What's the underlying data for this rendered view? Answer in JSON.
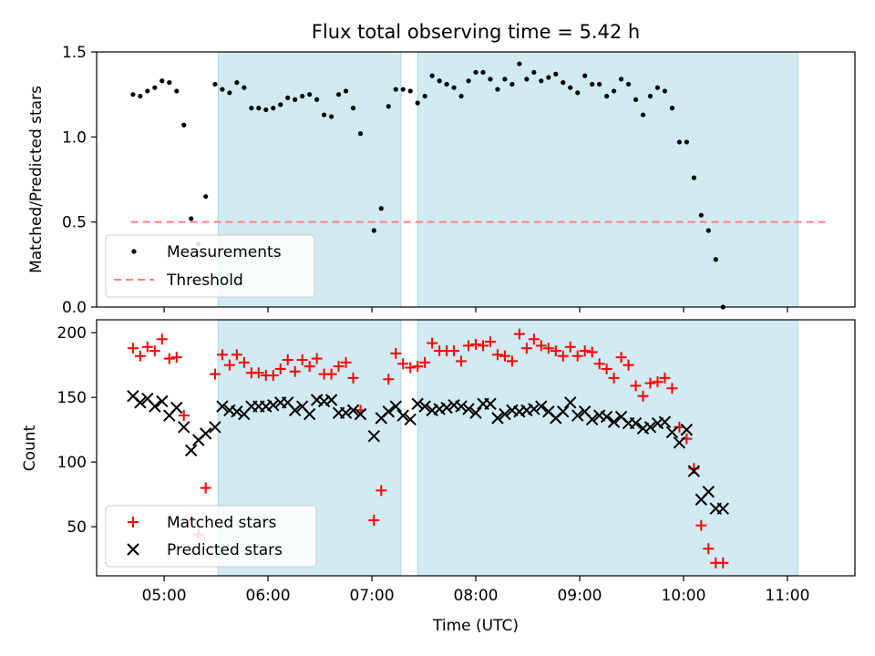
{
  "figure_title": "Flux total observing time = 5.42 h",
  "chart_data": [
    {
      "type": "scatter",
      "title": "Flux total observing time = 5.42 h",
      "xlabel": "",
      "ylabel": "Matched/Predicted stars",
      "xlim_hours": [
        4.35,
        11.65
      ],
      "ylim": [
        0,
        1.5
      ],
      "yticks": [
        "0.0",
        "0.5",
        "1.0",
        "1.5"
      ],
      "xticks": [
        "05:00",
        "06:00",
        "07:00",
        "08:00",
        "09:00",
        "10:00",
        "11:00"
      ],
      "shaded_intervals_hours": [
        [
          5.52,
          7.28
        ],
        [
          7.44,
          11.1
        ]
      ],
      "shade_color": "#add8e6",
      "grid": false,
      "legend": {
        "position": "lower-left"
      },
      "series": [
        {
          "name": "Measurements",
          "kind": "points",
          "color": "#000000",
          "points": [
            [
              4.7,
              1.25
            ],
            [
              4.77,
              1.24
            ],
            [
              4.84,
              1.27
            ],
            [
              4.91,
              1.29
            ],
            [
              4.98,
              1.33
            ],
            [
              5.05,
              1.32
            ],
            [
              5.12,
              1.27
            ],
            [
              5.19,
              1.07
            ],
            [
              5.26,
              0.52
            ],
            [
              5.33,
              0.37
            ],
            [
              5.4,
              0.65
            ],
            [
              5.49,
              1.31
            ],
            [
              5.56,
              1.28
            ],
            [
              5.63,
              1.26
            ],
            [
              5.7,
              1.32
            ],
            [
              5.77,
              1.29
            ],
            [
              5.84,
              1.17
            ],
            [
              5.91,
              1.17
            ],
            [
              5.98,
              1.16
            ],
            [
              6.05,
              1.17
            ],
            [
              6.12,
              1.19
            ],
            [
              6.19,
              1.23
            ],
            [
              6.26,
              1.22
            ],
            [
              6.33,
              1.24
            ],
            [
              6.4,
              1.25
            ],
            [
              6.47,
              1.22
            ],
            [
              6.54,
              1.13
            ],
            [
              6.61,
              1.12
            ],
            [
              6.68,
              1.25
            ],
            [
              6.75,
              1.27
            ],
            [
              6.82,
              1.17
            ],
            [
              6.89,
              1.02
            ],
            [
              7.02,
              0.45
            ],
            [
              7.09,
              0.58
            ],
            [
              7.16,
              1.18
            ],
            [
              7.23,
              1.28
            ],
            [
              7.3,
              1.28
            ],
            [
              7.37,
              1.27
            ],
            [
              7.44,
              1.2
            ],
            [
              7.51,
              1.24
            ],
            [
              7.58,
              1.36
            ],
            [
              7.65,
              1.33
            ],
            [
              7.72,
              1.31
            ],
            [
              7.79,
              1.29
            ],
            [
              7.86,
              1.24
            ],
            [
              7.93,
              1.33
            ],
            [
              8.0,
              1.38
            ],
            [
              8.07,
              1.38
            ],
            [
              8.14,
              1.34
            ],
            [
              8.21,
              1.28
            ],
            [
              8.28,
              1.34
            ],
            [
              8.35,
              1.31
            ],
            [
              8.42,
              1.43
            ],
            [
              8.49,
              1.34
            ],
            [
              8.56,
              1.38
            ],
            [
              8.63,
              1.33
            ],
            [
              8.7,
              1.35
            ],
            [
              8.77,
              1.37
            ],
            [
              8.84,
              1.32
            ],
            [
              8.91,
              1.29
            ],
            [
              8.98,
              1.26
            ],
            [
              9.05,
              1.36
            ],
            [
              9.12,
              1.31
            ],
            [
              9.19,
              1.31
            ],
            [
              9.26,
              1.24
            ],
            [
              9.33,
              1.27
            ],
            [
              9.4,
              1.34
            ],
            [
              9.47,
              1.31
            ],
            [
              9.54,
              1.22
            ],
            [
              9.61,
              1.13
            ],
            [
              9.68,
              1.24
            ],
            [
              9.75,
              1.29
            ],
            [
              9.82,
              1.27
            ],
            [
              9.89,
              1.17
            ],
            [
              9.96,
              0.97
            ],
            [
              10.03,
              0.97
            ],
            [
              10.1,
              0.76
            ],
            [
              10.17,
              0.54
            ],
            [
              10.24,
              0.45
            ],
            [
              10.31,
              0.28
            ],
            [
              10.38,
              0.0
            ]
          ]
        },
        {
          "name": "Threshold",
          "kind": "dashed-line",
          "color": "#ff7f7f",
          "x_hours": [
            4.68,
            11.38
          ],
          "y": 0.5
        }
      ]
    },
    {
      "type": "scatter",
      "title": "",
      "xlabel": "Time (UTC)",
      "ylabel": "Count",
      "xlim_hours": [
        4.35,
        11.65
      ],
      "ylim": [
        12,
        210
      ],
      "yticks": [
        "50",
        "100",
        "150",
        "200"
      ],
      "xticks": [
        "05:00",
        "06:00",
        "07:00",
        "08:00",
        "09:00",
        "10:00",
        "11:00"
      ],
      "shaded_intervals_hours": [
        [
          5.52,
          7.28
        ],
        [
          7.44,
          11.1
        ]
      ],
      "shade_color": "#add8e6",
      "grid": false,
      "legend": {
        "position": "lower-left"
      },
      "series": [
        {
          "name": "Matched stars",
          "kind": "plus",
          "color": "#ff0000",
          "points": [
            [
              4.7,
              188
            ],
            [
              4.77,
              182
            ],
            [
              4.84,
              189
            ],
            [
              4.91,
              186
            ],
            [
              4.98,
              195
            ],
            [
              5.05,
              180
            ],
            [
              5.12,
              181
            ],
            [
              5.19,
              136
            ],
            [
              5.26,
              55
            ],
            [
              5.33,
              44
            ],
            [
              5.4,
              80
            ],
            [
              5.49,
              168
            ],
            [
              5.56,
              183
            ],
            [
              5.63,
              175
            ],
            [
              5.7,
              183
            ],
            [
              5.77,
              177
            ],
            [
              5.84,
              169
            ],
            [
              5.91,
              169
            ],
            [
              5.98,
              167
            ],
            [
              6.05,
              167
            ],
            [
              6.12,
              172
            ],
            [
              6.19,
              179
            ],
            [
              6.26,
              170
            ],
            [
              6.33,
              179
            ],
            [
              6.4,
              174
            ],
            [
              6.47,
              180
            ],
            [
              6.54,
              168
            ],
            [
              6.61,
              168
            ],
            [
              6.68,
              174
            ],
            [
              6.75,
              177
            ],
            [
              6.82,
              165
            ],
            [
              6.89,
              140
            ],
            [
              7.02,
              55
            ],
            [
              7.09,
              78
            ],
            [
              7.16,
              164
            ],
            [
              7.23,
              184
            ],
            [
              7.3,
              176
            ],
            [
              7.37,
              173
            ],
            [
              7.44,
              174
            ],
            [
              7.51,
              177
            ],
            [
              7.58,
              192
            ],
            [
              7.65,
              186
            ],
            [
              7.72,
              186
            ],
            [
              7.79,
              186
            ],
            [
              7.86,
              178
            ],
            [
              7.93,
              190
            ],
            [
              8.0,
              191
            ],
            [
              8.07,
              190
            ],
            [
              8.14,
              193
            ],
            [
              8.21,
              183
            ],
            [
              8.28,
              182
            ],
            [
              8.35,
              178
            ],
            [
              8.42,
              199
            ],
            [
              8.49,
              188
            ],
            [
              8.56,
              195
            ],
            [
              8.63,
              190
            ],
            [
              8.7,
              188
            ],
            [
              8.77,
              186
            ],
            [
              8.84,
              182
            ],
            [
              8.91,
              189
            ],
            [
              8.98,
              182
            ],
            [
              9.05,
              186
            ],
            [
              9.12,
              185
            ],
            [
              9.19,
              176
            ],
            [
              9.26,
              172
            ],
            [
              9.33,
              165
            ],
            [
              9.4,
              181
            ],
            [
              9.47,
              175
            ],
            [
              9.54,
              159
            ],
            [
              9.61,
              151
            ],
            [
              9.68,
              161
            ],
            [
              9.75,
              162
            ],
            [
              9.82,
              165
            ],
            [
              9.89,
              157
            ],
            [
              9.96,
              127
            ],
            [
              10.03,
              118
            ],
            [
              10.1,
              95
            ],
            [
              10.17,
              51
            ],
            [
              10.24,
              33
            ],
            [
              10.31,
              22
            ],
            [
              10.38,
              22
            ]
          ]
        },
        {
          "name": "Predicted stars",
          "kind": "x",
          "color": "#000000",
          "points": [
            [
              4.7,
              151
            ],
            [
              4.77,
              146
            ],
            [
              4.84,
              149
            ],
            [
              4.91,
              143
            ],
            [
              4.98,
              147
            ],
            [
              5.05,
              136
            ],
            [
              5.12,
              142
            ],
            [
              5.19,
              127
            ],
            [
              5.26,
              109
            ],
            [
              5.33,
              117
            ],
            [
              5.4,
              122
            ],
            [
              5.49,
              127
            ],
            [
              5.56,
              143
            ],
            [
              5.63,
              140
            ],
            [
              5.7,
              139
            ],
            [
              5.77,
              137
            ],
            [
              5.84,
              143
            ],
            [
              5.91,
              143
            ],
            [
              5.98,
              143
            ],
            [
              6.05,
              144
            ],
            [
              6.12,
              146
            ],
            [
              6.19,
              146
            ],
            [
              6.26,
              140
            ],
            [
              6.33,
              143
            ],
            [
              6.4,
              137
            ],
            [
              6.47,
              148
            ],
            [
              6.54,
              147
            ],
            [
              6.61,
              148
            ],
            [
              6.68,
              138
            ],
            [
              6.75,
              138
            ],
            [
              6.82,
              140
            ],
            [
              6.89,
              137
            ],
            [
              7.02,
              120
            ],
            [
              7.09,
              134
            ],
            [
              7.16,
              139
            ],
            [
              7.23,
              143
            ],
            [
              7.3,
              136
            ],
            [
              7.37,
              133
            ],
            [
              7.44,
              145
            ],
            [
              7.51,
              143
            ],
            [
              7.58,
              140
            ],
            [
              7.65,
              141
            ],
            [
              7.72,
              142
            ],
            [
              7.79,
              144
            ],
            [
              7.86,
              143
            ],
            [
              7.93,
              141
            ],
            [
              8.0,
              138
            ],
            [
              8.07,
              145
            ],
            [
              8.14,
              145
            ],
            [
              8.21,
              134
            ],
            [
              8.28,
              137
            ],
            [
              8.35,
              140
            ],
            [
              8.42,
              139
            ],
            [
              8.49,
              140
            ],
            [
              8.56,
              141
            ],
            [
              8.63,
              143
            ],
            [
              8.7,
              139
            ],
            [
              8.77,
              134
            ],
            [
              8.84,
              139
            ],
            [
              8.91,
              146
            ],
            [
              8.98,
              136
            ],
            [
              9.05,
              139
            ],
            [
              9.12,
              133
            ],
            [
              9.19,
              136
            ],
            [
              9.26,
              135
            ],
            [
              9.33,
              131
            ],
            [
              9.4,
              135
            ],
            [
              9.47,
              130
            ],
            [
              9.54,
              130
            ],
            [
              9.61,
              126
            ],
            [
              9.68,
              127
            ],
            [
              9.75,
              130
            ],
            [
              9.82,
              131
            ],
            [
              9.89,
              123
            ],
            [
              9.96,
              115
            ],
            [
              10.03,
              125
            ],
            [
              10.1,
              93
            ],
            [
              10.17,
              71
            ],
            [
              10.24,
              77
            ],
            [
              10.31,
              64
            ],
            [
              10.38,
              64
            ]
          ]
        }
      ]
    }
  ]
}
